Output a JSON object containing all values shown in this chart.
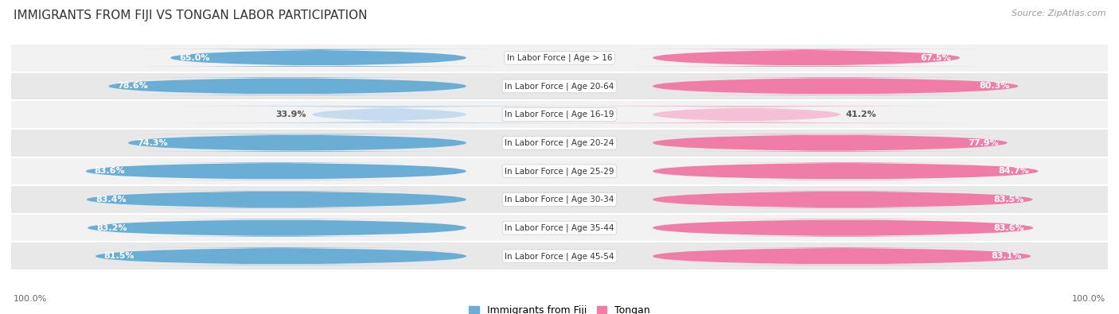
{
  "title": "IMMIGRANTS FROM FIJI VS TONGAN LABOR PARTICIPATION",
  "source": "Source: ZipAtlas.com",
  "categories": [
    "In Labor Force | Age > 16",
    "In Labor Force | Age 20-64",
    "In Labor Force | Age 16-19",
    "In Labor Force | Age 20-24",
    "In Labor Force | Age 25-29",
    "In Labor Force | Age 30-34",
    "In Labor Force | Age 35-44",
    "In Labor Force | Age 45-54"
  ],
  "fiji_values": [
    65.0,
    78.6,
    33.9,
    74.3,
    83.6,
    83.4,
    83.2,
    81.5
  ],
  "tongan_values": [
    67.5,
    80.3,
    41.2,
    77.9,
    84.7,
    83.5,
    83.6,
    83.1
  ],
  "fiji_color": "#6AAED6",
  "fiji_color_light": "#C5DCF0",
  "tongan_color": "#F07CA8",
  "tongan_color_light": "#F5C0D5",
  "row_bg_color_odd": "#F2F2F2",
  "row_bg_color_even": "#E8E8E8",
  "max_value": 100.0,
  "title_fontsize": 11,
  "label_fontsize": 8.0,
  "cat_fontsize": 7.5,
  "tick_fontsize": 8,
  "legend_fontsize": 9
}
